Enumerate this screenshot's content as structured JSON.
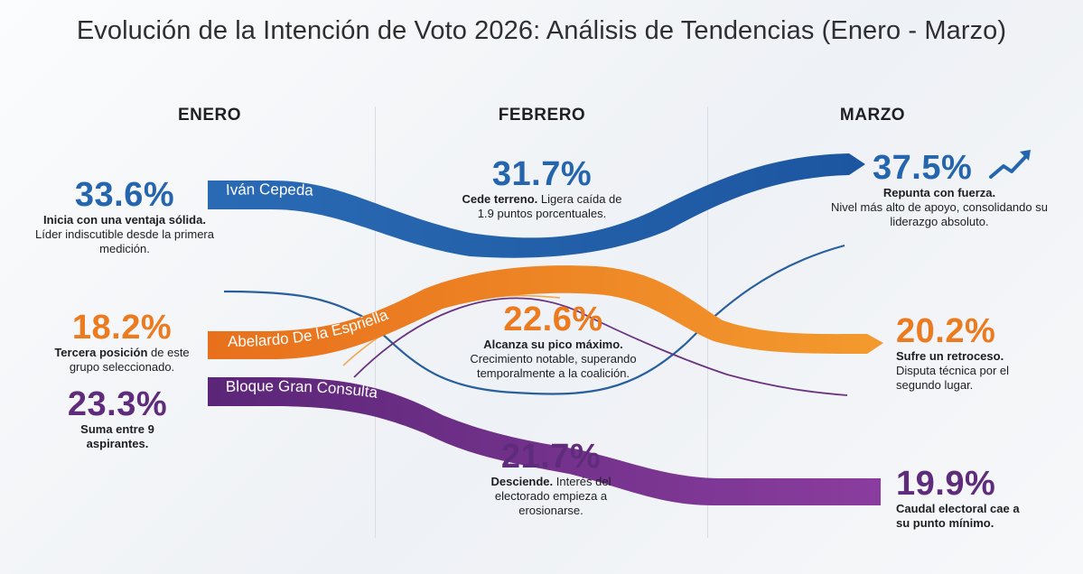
{
  "title": "Evolución de la Intención de Voto 2026: Análisis de Tendencias (Enero - Marzo)",
  "colors": {
    "blue": "#2565ad",
    "orange": "#ec7b1f",
    "purple": "#6a2d8a"
  },
  "chart_data": {
    "type": "line",
    "categories": [
      "ENERO",
      "FEBRERO",
      "MARZO"
    ],
    "series": [
      {
        "name": "Iván Cepeda",
        "values": [
          33.6,
          31.7,
          37.5
        ],
        "color": "#2565ad"
      },
      {
        "name": "Abelardo De la Espriella",
        "values": [
          18.2,
          22.6,
          20.2
        ],
        "color": "#ec7b1f"
      },
      {
        "name": "Bloque Gran Consulta",
        "values": [
          23.3,
          21.7,
          19.9
        ],
        "color": "#6a2d8a"
      }
    ],
    "annotations": {
      "cepeda": [
        {
          "pct": "33.6%",
          "bold": "Inicia con una ventaja sólida.",
          "text": "Líder indiscutible desde la primera medición."
        },
        {
          "pct": "31.7%",
          "bold": "Cede terreno.",
          "text": " Ligera caída de 1.9 puntos porcentuales."
        },
        {
          "pct": "37.5%",
          "bold": "Repunta con fuerza.",
          "text": "Nivel más alto de apoyo, consolidando su liderazgo absoluto."
        }
      ],
      "abelardo": [
        {
          "pct": "18.2%",
          "bold": "Tercera posición",
          "text": " de este grupo seleccionado."
        },
        {
          "pct": "22.6%",
          "bold": "Alcanza su pico máximo.",
          "text": "Crecimiento notable, superando temporalmente a la coalición."
        },
        {
          "pct": "20.2%",
          "bold": "Sufre un retroceso.",
          "text": "Disputa técnica por el segundo lugar."
        }
      ],
      "bloque": [
        {
          "pct": "23.3%",
          "bold": "Suma entre 9 aspirantes.",
          "text": ""
        },
        {
          "pct": "21.7%",
          "bold": "Desciende.",
          "text": " Interés del electorado empieza a erosionarse."
        },
        {
          "pct": "19.9%",
          "bold": "Caudal electoral cae a su punto mínimo.",
          "text": ""
        }
      ]
    }
  },
  "icons": {
    "trend": "trend-up-arrow-icon"
  }
}
